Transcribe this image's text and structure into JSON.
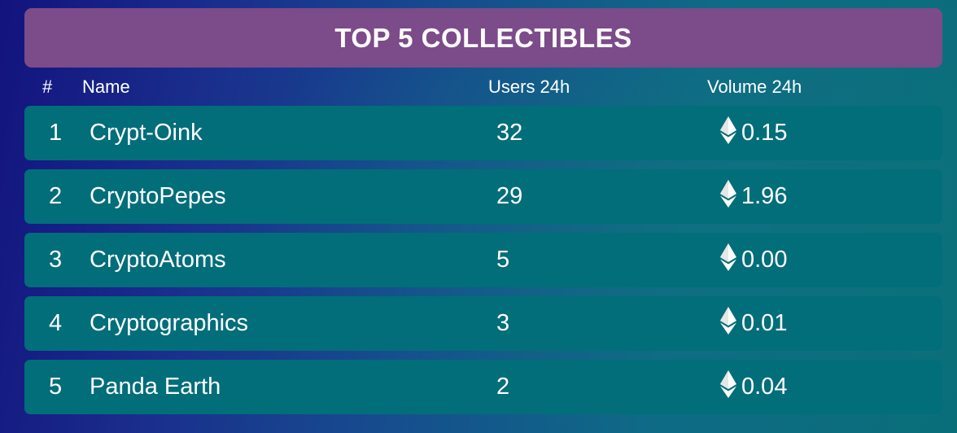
{
  "title": "TOP 5 COLLECTIBLES",
  "columns": {
    "rank": "#",
    "name": "Name",
    "users": "Users 24h",
    "volume": "Volume 24h"
  },
  "rows": [
    {
      "rank": "1",
      "name": "Crypt-Oink",
      "users": "32",
      "volume": "0.15",
      "currency_icon": "ethereum-icon"
    },
    {
      "rank": "2",
      "name": "CryptoPepes",
      "users": "29",
      "volume": "1.96",
      "currency_icon": "ethereum-icon"
    },
    {
      "rank": "3",
      "name": "CryptoAtoms",
      "users": "5",
      "volume": "0.00",
      "currency_icon": "ethereum-icon"
    },
    {
      "rank": "4",
      "name": "Cryptographics",
      "users": "3",
      "volume": "0.01",
      "currency_icon": "ethereum-icon"
    },
    {
      "rank": "5",
      "name": "Panda Earth",
      "users": "2",
      "volume": "0.04",
      "currency_icon": "ethereum-icon"
    }
  ],
  "colors": {
    "title_bar": "#7c4b89",
    "row_background": "#026e7a",
    "text": "#ffffff"
  }
}
